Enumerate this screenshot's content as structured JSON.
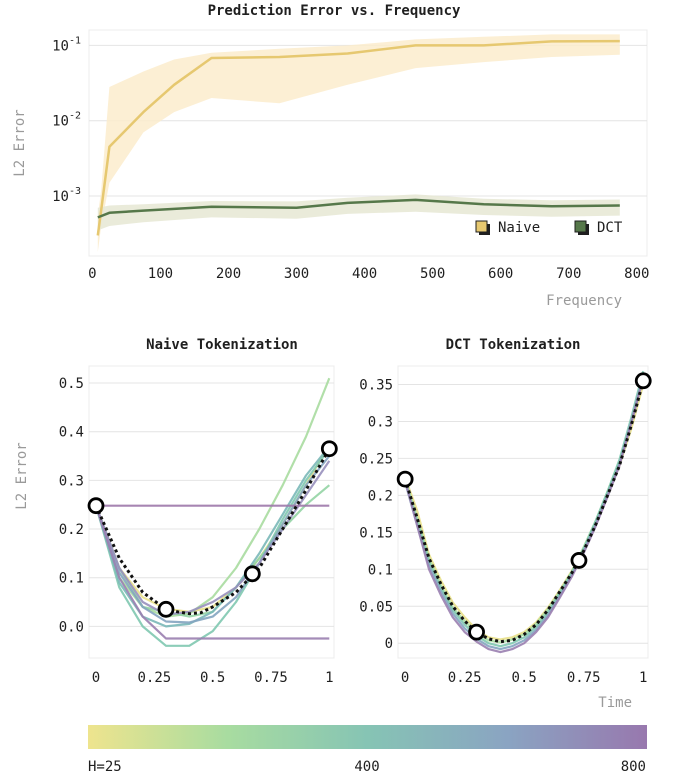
{
  "chart_data": [
    {
      "type": "line",
      "title": "Prediction Error vs. Frequency",
      "xlabel": "Frequency",
      "ylabel": "L2 Error",
      "yscale": "log",
      "xlim": [
        -5,
        815
      ],
      "ylim": [
        0.00016,
        0.16
      ],
      "xticks": [
        0,
        100,
        200,
        300,
        400,
        500,
        600,
        700,
        800
      ],
      "xtick_labels": [
        "0",
        "100",
        "200",
        "300",
        "400",
        "500",
        "600",
        "700",
        "800"
      ],
      "yticks": [
        0.001,
        0.01,
        0.1
      ],
      "ytick_bases": [
        "10",
        "10",
        "10"
      ],
      "ytick_exps": [
        "-3",
        "-2",
        "-1"
      ],
      "grid": true,
      "legend": "bottom-right",
      "series": [
        {
          "name": "Naive",
          "color": "#e6c870",
          "band_color": "#fbeccc",
          "x": [
            8,
            13,
            25,
            75,
            120,
            175,
            275,
            375,
            475,
            575,
            675,
            775
          ],
          "y": [
            0.0003,
            0.00065,
            0.0045,
            0.013,
            0.03,
            0.068,
            0.07,
            0.078,
            0.1,
            0.1,
            0.113,
            0.114
          ],
          "band_low": [
            0.00018,
            0.0004,
            0.0015,
            0.007,
            0.013,
            0.02,
            0.017,
            0.03,
            0.05,
            0.06,
            0.07,
            0.075
          ],
          "band_high": [
            0.00055,
            0.0012,
            0.028,
            0.045,
            0.065,
            0.08,
            0.09,
            0.1,
            0.12,
            0.13,
            0.14,
            0.14
          ]
        },
        {
          "name": "DCT",
          "color": "#56784a",
          "band_color": "#e6e7d4",
          "x": [
            8,
            25,
            75,
            175,
            300,
            375,
            475,
            575,
            675,
            775
          ],
          "y": [
            0.00052,
            0.0006,
            0.00064,
            0.00072,
            0.0007,
            0.00081,
            0.00089,
            0.00078,
            0.00073,
            0.00075
          ],
          "band_low": [
            0.00035,
            0.0004,
            0.00045,
            0.00052,
            0.0005,
            0.00058,
            0.00062,
            0.00056,
            0.00053,
            0.00055
          ],
          "band_high": [
            0.0007,
            0.00075,
            0.00078,
            0.00086,
            0.00085,
            0.00095,
            0.00105,
            0.00092,
            0.00088,
            0.0009
          ]
        }
      ]
    },
    {
      "type": "line",
      "title": "Naive Tokenization",
      "xlabel": "",
      "ylabel": "L2 Error",
      "xlim": [
        -0.03,
        1.02
      ],
      "ylim": [
        -0.065,
        0.535
      ],
      "xticks": [
        0,
        0.25,
        0.5,
        0.75,
        1
      ],
      "xtick_labels": [
        "0",
        "0.25",
        "0.5",
        "0.75",
        "1"
      ],
      "yticks": [
        0,
        0.1,
        0.2,
        0.3,
        0.4,
        0.5
      ],
      "ytick_labels": [
        "0.0",
        "0.1",
        "0.2",
        "0.3",
        "0.4",
        "0.5"
      ],
      "grid": true,
      "markers": {
        "x": [
          0,
          0.3,
          0.67,
          1.0
        ],
        "y": [
          0.248,
          0.035,
          0.108,
          0.365
        ]
      },
      "target": {
        "x": [
          0,
          0.1,
          0.2,
          0.3,
          0.35,
          0.4,
          0.45,
          0.5,
          0.6,
          0.7,
          0.8,
          0.9,
          1.0
        ],
        "y": [
          0.248,
          0.14,
          0.07,
          0.035,
          0.03,
          0.026,
          0.028,
          0.04,
          0.07,
          0.12,
          0.2,
          0.28,
          0.365
        ]
      },
      "series": [
        {
          "color": "#e8e08a",
          "x": [
            0,
            0.1,
            0.2,
            0.3,
            0.4,
            0.5,
            0.6,
            0.7,
            0.8,
            0.9,
            1.0
          ],
          "y": [
            0.248,
            0.12,
            0.06,
            0.036,
            0.03,
            0.04,
            0.08,
            0.14,
            0.21,
            0.29,
            0.375
          ]
        },
        {
          "color": "#a8dca0",
          "x": [
            0,
            0.1,
            0.2,
            0.3,
            0.4,
            0.5,
            0.6,
            0.7,
            0.8,
            0.9,
            1.0
          ],
          "y": [
            0.248,
            0.1,
            0.04,
            0.02,
            0.026,
            0.06,
            0.12,
            0.2,
            0.29,
            0.39,
            0.51
          ]
        },
        {
          "color": "#94d4a4",
          "x": [
            0,
            0.1,
            0.2,
            0.3,
            0.4,
            0.5,
            0.6,
            0.7,
            0.8,
            0.9,
            1.0
          ],
          "y": [
            0.248,
            0.12,
            0.04,
            0.03,
            0.02,
            0.03,
            0.08,
            0.14,
            0.2,
            0.25,
            0.29
          ]
        },
        {
          "color": "#80c8b0",
          "x": [
            0,
            0.1,
            0.2,
            0.3,
            0.4,
            0.5,
            0.6,
            0.7,
            0.8,
            0.9,
            1.0
          ],
          "y": [
            0.248,
            0.08,
            0.0,
            -0.04,
            -0.04,
            -0.01,
            0.05,
            0.13,
            0.22,
            0.3,
            0.365
          ]
        },
        {
          "color": "#7ab8b8",
          "x": [
            0,
            0.1,
            0.2,
            0.3,
            0.4,
            0.5,
            0.6,
            0.7,
            0.8,
            0.9,
            1.0
          ],
          "y": [
            0.248,
            0.09,
            0.02,
            0.0,
            0.005,
            0.03,
            0.08,
            0.15,
            0.23,
            0.31,
            0.37
          ]
        },
        {
          "color": "#84a4c0",
          "x": [
            0,
            0.1,
            0.2,
            0.3,
            0.4,
            0.5,
            0.6,
            0.7,
            0.8,
            0.9,
            1.0
          ],
          "y": [
            0.248,
            0.11,
            0.04,
            0.01,
            0.008,
            0.02,
            0.06,
            0.13,
            0.21,
            0.29,
            0.35
          ]
        },
        {
          "color": "#9890bc",
          "x": [
            0,
            0.1,
            0.2,
            0.3,
            0.4,
            0.5,
            0.6,
            0.7,
            0.8,
            0.9,
            1.0
          ],
          "y": [
            0.248,
            0.12,
            0.05,
            0.024,
            0.03,
            0.05,
            0.08,
            0.13,
            0.2,
            0.27,
            0.34
          ]
        },
        {
          "color": "#9a7fb0",
          "x": [
            0,
            0.1,
            0.2,
            0.3,
            0.4,
            1.0
          ],
          "y": [
            0.248,
            0.1,
            0.02,
            -0.025,
            -0.025,
            -0.025
          ]
        },
        {
          "color": "#9d78aa",
          "x": [
            0,
            1.0
          ],
          "y": [
            0.248,
            0.248
          ]
        }
      ]
    },
    {
      "type": "line",
      "title": "DCT Tokenization",
      "xlabel": "Time",
      "ylabel": "",
      "xlim": [
        -0.03,
        1.02
      ],
      "ylim": [
        -0.02,
        0.375
      ],
      "xticks": [
        0,
        0.25,
        0.5,
        0.75,
        1
      ],
      "xtick_labels": [
        "0",
        "0.25",
        "0.5",
        "0.75",
        "1"
      ],
      "yticks": [
        0,
        0.05,
        0.1,
        0.15,
        0.2,
        0.25,
        0.3,
        0.35
      ],
      "ytick_labels": [
        "0",
        "0.05",
        "0.1",
        "0.15",
        "0.2",
        "0.25",
        "0.3",
        "0.35"
      ],
      "grid": true,
      "markers": {
        "x": [
          0,
          0.3,
          0.73,
          1.0
        ],
        "y": [
          0.222,
          0.015,
          0.112,
          0.355
        ]
      },
      "target": {
        "x": [
          0,
          0.05,
          0.1,
          0.15,
          0.2,
          0.25,
          0.3,
          0.35,
          0.4,
          0.45,
          0.5,
          0.55,
          0.6,
          0.65,
          0.7,
          0.75,
          0.8,
          0.85,
          0.9,
          0.95,
          1.0
        ],
        "y": [
          0.222,
          0.17,
          0.115,
          0.08,
          0.05,
          0.03,
          0.015,
          0.006,
          0.002,
          0.004,
          0.012,
          0.025,
          0.045,
          0.07,
          0.095,
          0.125,
          0.16,
          0.2,
          0.24,
          0.295,
          0.355
        ]
      },
      "series": [
        {
          "color": "#e8e08a",
          "x": [
            0,
            0.05,
            0.1,
            0.15,
            0.2,
            0.25,
            0.3,
            0.35,
            0.4,
            0.45,
            0.5,
            0.55,
            0.6,
            0.65,
            0.7,
            0.75,
            0.8,
            0.85,
            0.9,
            0.95,
            1.0
          ],
          "y": [
            0.224,
            0.18,
            0.12,
            0.085,
            0.055,
            0.035,
            0.018,
            0.008,
            0.005,
            0.008,
            0.015,
            0.028,
            0.048,
            0.072,
            0.098,
            0.128,
            0.16,
            0.2,
            0.24,
            0.29,
            0.35
          ]
        },
        {
          "color": "#a8dca0",
          "x": [
            0,
            0.05,
            0.1,
            0.15,
            0.2,
            0.25,
            0.3,
            0.35,
            0.4,
            0.45,
            0.5,
            0.55,
            0.6,
            0.65,
            0.7,
            0.75,
            0.8,
            0.85,
            0.9,
            0.95,
            1.0
          ],
          "y": [
            0.222,
            0.17,
            0.115,
            0.078,
            0.048,
            0.03,
            0.014,
            0.004,
            0.001,
            0.005,
            0.012,
            0.026,
            0.046,
            0.07,
            0.097,
            0.13,
            0.165,
            0.205,
            0.245,
            0.3,
            0.36
          ]
        },
        {
          "color": "#80c8b0",
          "x": [
            0,
            0.05,
            0.1,
            0.15,
            0.2,
            0.25,
            0.3,
            0.35,
            0.4,
            0.45,
            0.5,
            0.55,
            0.6,
            0.65,
            0.7,
            0.75,
            0.8,
            0.85,
            0.9,
            0.95,
            1.0
          ],
          "y": [
            0.22,
            0.165,
            0.11,
            0.075,
            0.045,
            0.025,
            0.01,
            0.0,
            -0.004,
            0.0,
            0.008,
            0.022,
            0.042,
            0.068,
            0.095,
            0.128,
            0.165,
            0.205,
            0.248,
            0.305,
            0.368
          ]
        },
        {
          "color": "#84a4c0",
          "x": [
            0,
            0.05,
            0.1,
            0.15,
            0.2,
            0.25,
            0.3,
            0.35,
            0.4,
            0.45,
            0.5,
            0.55,
            0.6,
            0.65,
            0.7,
            0.75,
            0.8,
            0.85,
            0.9,
            0.95,
            1.0
          ],
          "y": [
            0.218,
            0.16,
            0.105,
            0.07,
            0.04,
            0.02,
            0.006,
            -0.004,
            -0.008,
            -0.004,
            0.004,
            0.018,
            0.038,
            0.064,
            0.092,
            0.125,
            0.16,
            0.2,
            0.242,
            0.3,
            0.362
          ]
        },
        {
          "color": "#9a7fb0",
          "x": [
            0,
            0.05,
            0.1,
            0.15,
            0.2,
            0.25,
            0.3,
            0.35,
            0.4,
            0.45,
            0.5,
            0.55,
            0.6,
            0.65,
            0.7,
            0.75,
            0.8,
            0.85,
            0.9,
            0.95,
            1.0
          ],
          "y": [
            0.22,
            0.16,
            0.1,
            0.065,
            0.035,
            0.015,
            0.002,
            -0.008,
            -0.012,
            -0.008,
            0.0,
            0.015,
            0.035,
            0.062,
            0.09,
            0.122,
            0.158,
            0.198,
            0.24,
            0.298,
            0.358
          ]
        }
      ]
    }
  ],
  "colorbar": {
    "stops": [
      "#eee48e",
      "#a8dca0",
      "#86c4b4",
      "#8aa4c2",
      "#9878ae"
    ],
    "labels": [
      "H=25",
      "400",
      "800"
    ]
  }
}
